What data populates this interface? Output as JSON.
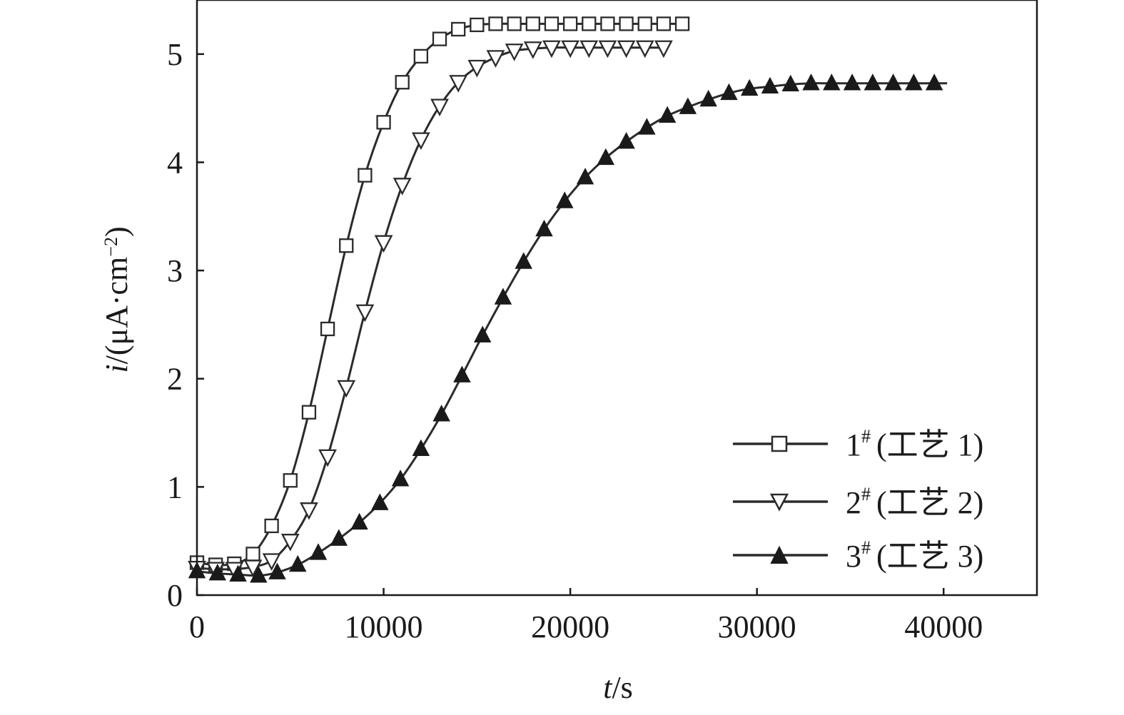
{
  "chart_data": {
    "type": "line",
    "title": "",
    "xlabel": {
      "var": "t",
      "unit": "/s"
    },
    "ylabel": {
      "var": "i",
      "unit": "/(μA·cm",
      "sup": "−2",
      "close": ")"
    },
    "xlim": [
      0,
      45000
    ],
    "ylim": [
      0,
      5.5
    ],
    "xticks": [
      0,
      10000,
      20000,
      30000,
      40000
    ],
    "xtick_labels": [
      "0",
      "10000",
      "20000",
      "30000",
      "40000"
    ],
    "yticks": [
      0,
      1,
      2,
      3,
      4,
      5
    ],
    "ytick_labels": [
      "0",
      "1",
      "2",
      "3",
      "4",
      "5"
    ],
    "grid": false,
    "legend_position": "bottom-right",
    "colors": {
      "line": "#2b2b2b",
      "marker_fill_filled": "#1a1a1a",
      "marker_fill_open": "#ffffff",
      "frame": "#1a1a1a"
    },
    "series": [
      {
        "name": "(工艺 1)",
        "legend_num": "1",
        "legend_sup": "#",
        "marker": "square-open",
        "x": [
          0,
          1000,
          2000,
          3000,
          4000,
          5000,
          6000,
          7000,
          8000,
          9000,
          10000,
          11000,
          12000,
          13000,
          14000,
          15000,
          16000,
          17000,
          18000,
          19000,
          20000,
          21000,
          22000,
          23000,
          24000,
          25000,
          26000
        ],
        "y": [
          0.3,
          0.28,
          0.29,
          0.38,
          0.64,
          1.06,
          1.69,
          2.46,
          3.23,
          3.88,
          4.37,
          4.74,
          4.98,
          5.14,
          5.23,
          5.27,
          5.28,
          5.28,
          5.28,
          5.28,
          5.28,
          5.28,
          5.28,
          5.28,
          5.28,
          5.28,
          5.28
        ]
      },
      {
        "name": "(工艺 2)",
        "legend_num": "2",
        "legend_sup": "#",
        "marker": "triangle-down-open",
        "x": [
          0,
          1000,
          2000,
          3000,
          4000,
          5000,
          6000,
          7000,
          8000,
          9000,
          10000,
          11000,
          12000,
          13000,
          14000,
          15000,
          16000,
          17000,
          18000,
          19000,
          20000,
          21000,
          22000,
          23000,
          24000,
          25000
        ],
        "y": [
          0.25,
          0.24,
          0.24,
          0.26,
          0.32,
          0.5,
          0.79,
          1.28,
          1.92,
          2.62,
          3.26,
          3.79,
          4.21,
          4.52,
          4.74,
          4.88,
          4.97,
          5.03,
          5.05,
          5.06,
          5.06,
          5.06,
          5.06,
          5.06,
          5.06,
          5.06
        ]
      },
      {
        "name": "(工艺 3)",
        "legend_num": "3",
        "legend_sup": "#",
        "marker": "triangle-up-filled",
        "x": [
          0,
          1100,
          2200,
          3300,
          4300,
          5400,
          6500,
          7600,
          8700,
          9800,
          10900,
          12000,
          13100,
          14200,
          15300,
          16400,
          17500,
          18600,
          19700,
          20800,
          21900,
          23000,
          24100,
          25200,
          26300,
          27400,
          28500,
          29600,
          30700,
          31800,
          32900,
          34000,
          35100,
          36200,
          37300,
          38400,
          39500
        ],
        "y": [
          0.22,
          0.2,
          0.19,
          0.18,
          0.21,
          0.28,
          0.39,
          0.52,
          0.67,
          0.85,
          1.07,
          1.35,
          1.67,
          2.03,
          2.4,
          2.75,
          3.08,
          3.38,
          3.64,
          3.86,
          4.04,
          4.19,
          4.32,
          4.43,
          4.51,
          4.58,
          4.64,
          4.68,
          4.7,
          4.72,
          4.73,
          4.73,
          4.73,
          4.73,
          4.73,
          4.73,
          4.73
        ]
      }
    ]
  }
}
